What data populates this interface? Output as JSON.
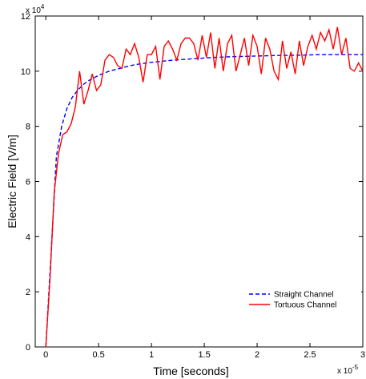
{
  "chart_data": {
    "type": "line",
    "title": "",
    "xlabel": "Time [seconds]",
    "ylabel": "Electric Field [V/m]",
    "x_multiplier_label": "x 10",
    "x_multiplier_exp": "-5",
    "y_multiplier_label": "x 10",
    "y_multiplier_exp": "4",
    "xlim": [
      -0.1,
      3
    ],
    "ylim": [
      0,
      12
    ],
    "xticks": [
      0,
      0.5,
      1,
      1.5,
      2,
      2.5,
      3
    ],
    "xtick_labels": [
      "0",
      "0.5",
      "1",
      "1.5",
      "2",
      "2.5",
      "3"
    ],
    "yticks": [
      0,
      2,
      4,
      6,
      8,
      10,
      12
    ],
    "ytick_labels": [
      "0",
      "2",
      "4",
      "6",
      "8",
      "10",
      "12"
    ],
    "grid": false,
    "legend_position": "bottom-right",
    "series": [
      {
        "name": "Straight Channel",
        "color": "#0000ff",
        "style": "dashed",
        "x": [
          0,
          0.05,
          0.1,
          0.15,
          0.2,
          0.25,
          0.3,
          0.35,
          0.4,
          0.5,
          0.6,
          0.7,
          0.8,
          0.9,
          1.0,
          1.2,
          1.4,
          1.6,
          1.8,
          2.0,
          2.2,
          2.4,
          2.6,
          2.8,
          3.0
        ],
        "values": [
          0,
          3.4,
          6.9,
          8.0,
          8.65,
          9.05,
          9.3,
          9.5,
          9.65,
          9.85,
          10.0,
          10.1,
          10.2,
          10.27,
          10.32,
          10.4,
          10.45,
          10.5,
          10.53,
          10.55,
          10.57,
          10.58,
          10.6,
          10.6,
          10.6
        ]
      },
      {
        "name": "Tortuous Channel",
        "color": "#ff0000",
        "style": "solid",
        "x": [
          0,
          0.04,
          0.08,
          0.12,
          0.16,
          0.2,
          0.24,
          0.28,
          0.32,
          0.36,
          0.4,
          0.44,
          0.48,
          0.52,
          0.56,
          0.6,
          0.64,
          0.68,
          0.72,
          0.76,
          0.8,
          0.84,
          0.88,
          0.92,
          0.96,
          1.0,
          1.04,
          1.08,
          1.12,
          1.16,
          1.2,
          1.24,
          1.28,
          1.32,
          1.36,
          1.4,
          1.44,
          1.48,
          1.52,
          1.56,
          1.6,
          1.64,
          1.68,
          1.72,
          1.76,
          1.8,
          1.84,
          1.88,
          1.92,
          1.96,
          2.0,
          2.04,
          2.08,
          2.12,
          2.16,
          2.2,
          2.24,
          2.28,
          2.32,
          2.36,
          2.4,
          2.44,
          2.48,
          2.52,
          2.56,
          2.6,
          2.64,
          2.68,
          2.72,
          2.76,
          2.8,
          2.84,
          2.88,
          2.92,
          2.96,
          3.0
        ],
        "values": [
          0,
          2.5,
          5.6,
          7.0,
          7.7,
          7.8,
          8.1,
          8.7,
          10.0,
          8.8,
          9.3,
          9.9,
          9.3,
          9.5,
          10.4,
          10.6,
          10.5,
          10.2,
          10.1,
          10.8,
          10.6,
          11.0,
          10.5,
          9.6,
          10.6,
          10.6,
          10.9,
          9.7,
          10.9,
          11.1,
          10.8,
          10.4,
          11.0,
          11.2,
          11.2,
          11.0,
          10.4,
          11.3,
          10.5,
          11.4,
          10.1,
          11.2,
          10.0,
          11.0,
          11.3,
          10.0,
          10.6,
          11.2,
          10.2,
          11.3,
          10.9,
          9.9,
          11.2,
          10.8,
          10.0,
          9.7,
          11.1,
          10.1,
          10.7,
          9.9,
          11.1,
          10.2,
          10.9,
          11.3,
          10.8,
          11.4,
          11.1,
          11.5,
          10.8,
          11.6,
          10.6,
          11.2,
          10.1,
          10.0,
          10.3,
          10.0
        ]
      }
    ]
  }
}
